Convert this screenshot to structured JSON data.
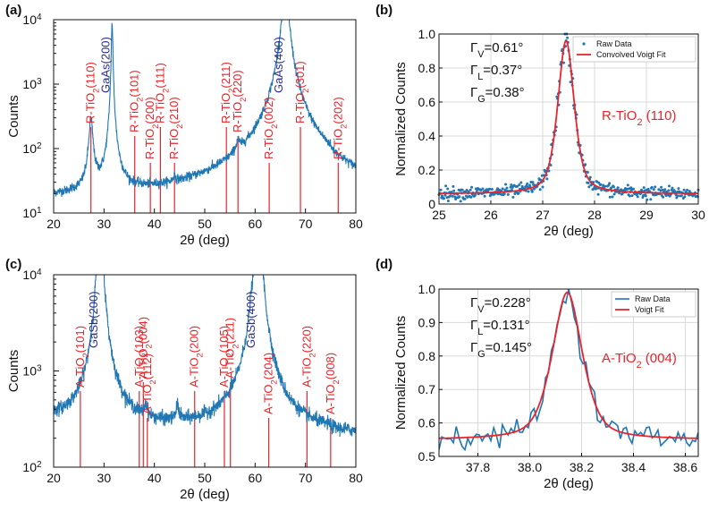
{
  "colors": {
    "raw": "#1f77b4",
    "fit": "#e8242c",
    "ref": "#e8242c",
    "substrate": "#2b2e8f",
    "grid": "#d9d9d9"
  },
  "chart_data": [
    {
      "panel": "(a)",
      "type": "line",
      "xlabel": "2θ (deg)",
      "ylabel": "Counts",
      "xlim": [
        20,
        80
      ],
      "yscale": "log",
      "ylim": [
        10,
        10000
      ],
      "xticks": [
        20,
        30,
        40,
        50,
        60,
        70,
        80
      ],
      "yticks": [
        {
          "v": 10,
          "label": "10",
          "sup": "1"
        },
        {
          "v": 100,
          "label": "10",
          "sup": "2"
        },
        {
          "v": 1000,
          "label": "10",
          "sup": "3"
        },
        {
          "v": 10000,
          "label": "10",
          "sup": "4"
        }
      ],
      "refs": [
        {
          "x": 27.4,
          "label": "R-TiO",
          "sub": "2",
          "hkl": "(110)",
          "color": "ref",
          "pos": "high"
        },
        {
          "x": 36.1,
          "label": "R-TiO",
          "sub": "2",
          "hkl": "(101)",
          "color": "ref",
          "pos": "mid"
        },
        {
          "x": 39.2,
          "label": "R-TiO",
          "sub": "2",
          "hkl": "(200)",
          "color": "ref",
          "pos": "low"
        },
        {
          "x": 41.2,
          "label": "R-TiO",
          "sub": "2",
          "hkl": "(111)",
          "color": "ref",
          "pos": "high"
        },
        {
          "x": 44.0,
          "label": "R-TiO",
          "sub": "2",
          "hkl": "(210)",
          "color": "ref",
          "pos": "low"
        },
        {
          "x": 54.3,
          "label": "R-TiO",
          "sub": "2",
          "hkl": "(211)",
          "color": "ref",
          "pos": "high"
        },
        {
          "x": 56.6,
          "label": "R-TiO",
          "sub": "2",
          "hkl": "(220)",
          "color": "ref",
          "pos": "mid"
        },
        {
          "x": 62.8,
          "label": "R-TiO",
          "sub": "2",
          "hkl": "(002)",
          "color": "ref",
          "pos": "low"
        },
        {
          "x": 69.0,
          "label": "R-TiO",
          "sub": "2",
          "hkl": "(301)",
          "color": "ref",
          "pos": "high"
        },
        {
          "x": 76.5,
          "label": "R-TiO",
          "sub": "2",
          "hkl": "(202)",
          "color": "ref",
          "pos": "low"
        }
      ],
      "substrate_labels": [
        {
          "x": 31.6,
          "text": "GaAs(200)"
        },
        {
          "x": 66.0,
          "text": "GaAs(400)"
        }
      ],
      "peaks": [
        {
          "x": 27.4,
          "h": 270,
          "w": 0.35
        },
        {
          "x": 31.6,
          "h": 9000,
          "w": 0.12
        },
        {
          "x": 66.0,
          "h": 60000,
          "w": 0.35
        },
        {
          "x": 56.6,
          "h": 40,
          "w": 0.4
        },
        {
          "x": 44.0,
          "h": 8,
          "w": 0.2
        },
        {
          "x": 62.8,
          "h": 12,
          "w": 0.3
        }
      ],
      "baseline": 16
    },
    {
      "panel": "(b)",
      "type": "scatter+line",
      "xlabel": "2θ (deg)",
      "ylabel": "Normalized Counts",
      "xlim": [
        25,
        30
      ],
      "ylim": [
        0,
        1.0
      ],
      "xticks": [
        25,
        26,
        27,
        28,
        29,
        30
      ],
      "yticks": [
        0,
        0.2,
        0.4,
        0.6,
        0.8,
        1.0
      ],
      "legend": [
        "Raw Data",
        "Convolved Voigt Fit"
      ],
      "annotations": [
        {
          "g": "Γ",
          "sub": "V",
          "val": "=0.61°"
        },
        {
          "g": "Γ",
          "sub": "L",
          "val": "=0.37°"
        },
        {
          "g": "Γ",
          "sub": "G",
          "val": "=0.38°"
        }
      ],
      "title_label": {
        "pre": "R-TiO",
        "sub": "2",
        "post": " (110)"
      },
      "fit": {
        "x0": 27.45,
        "amp": 0.9,
        "base": 0.06,
        "wl": 0.185,
        "wg": 0.19
      }
    },
    {
      "panel": "(c)",
      "type": "line",
      "xlabel": "2θ (deg)",
      "ylabel": "Counts",
      "xlim": [
        20,
        80
      ],
      "yscale": "log",
      "ylim": [
        100,
        10000
      ],
      "xticks": [
        20,
        30,
        40,
        50,
        60,
        70,
        80
      ],
      "yticks": [
        {
          "v": 100,
          "label": "10",
          "sup": "2"
        },
        {
          "v": 1000,
          "label": "10",
          "sup": "3"
        },
        {
          "v": 10000,
          "label": "10",
          "sup": "4"
        }
      ],
      "refs": [
        {
          "x": 25.3,
          "label": "A-TiO",
          "sub": "2",
          "hkl": "(101)",
          "color": "ref",
          "pos": "mid"
        },
        {
          "x": 37.0,
          "label": "A-TiO",
          "sub": "2",
          "hkl": "(103)",
          "color": "ref",
          "pos": "mid"
        },
        {
          "x": 37.8,
          "label": "A-TiO",
          "sub": "2",
          "hkl": "(004)",
          "color": "ref",
          "pos": "high"
        },
        {
          "x": 38.6,
          "label": "A-TiO",
          "sub": "2",
          "hkl": "(112)",
          "color": "ref",
          "pos": "low"
        },
        {
          "x": 48.0,
          "label": "A-TiO",
          "sub": "2",
          "hkl": "(200)",
          "color": "ref",
          "pos": "mid"
        },
        {
          "x": 53.9,
          "label": "A-TiO",
          "sub": "2",
          "hkl": "(105)",
          "color": "ref",
          "pos": "mid"
        },
        {
          "x": 55.1,
          "label": "A-TiO",
          "sub": "2",
          "hkl": "(211)",
          "color": "ref",
          "pos": "high"
        },
        {
          "x": 62.7,
          "label": "A-TiO",
          "sub": "2",
          "hkl": "(204)",
          "color": "ref",
          "pos": "low"
        },
        {
          "x": 70.3,
          "label": "A-TiO",
          "sub": "2",
          "hkl": "(220)",
          "color": "ref",
          "pos": "mid"
        },
        {
          "x": 75.0,
          "label": "A-TiO",
          "sub": "2",
          "hkl": "(008)",
          "color": "ref",
          "pos": "low"
        }
      ],
      "substrate_labels": [
        {
          "x": 29.2,
          "text": "GaSb(200)"
        },
        {
          "x": 60.5,
          "text": "GaSb(400)"
        }
      ],
      "peaks": [
        {
          "x": 29.2,
          "h": 60000,
          "w": 0.35
        },
        {
          "x": 60.6,
          "h": 60000,
          "w": 0.45
        },
        {
          "x": 38.3,
          "h": 120,
          "w": 0.3
        },
        {
          "x": 44.6,
          "h": 150,
          "w": 0.25
        },
        {
          "x": 59.2,
          "h": 700,
          "w": 0.25
        }
      ],
      "baseline": 240
    },
    {
      "panel": "(d)",
      "type": "line",
      "xlabel": "2θ (deg)",
      "ylabel": "Normalized Counts",
      "xlim": [
        37.65,
        38.65
      ],
      "ylim": [
        0.5,
        1.0
      ],
      "xticks": [
        37.8,
        38.0,
        38.2,
        38.4,
        38.6
      ],
      "yticks": [
        0.5,
        0.6,
        0.7,
        0.8,
        0.9,
        1.0
      ],
      "legend": [
        "Raw Data",
        "Voigt Fit"
      ],
      "annotations": [
        {
          "g": "Γ",
          "sub": "V",
          "val": "=0.228°"
        },
        {
          "g": "Γ",
          "sub": "L",
          "val": "=0.131°"
        },
        {
          "g": "Γ",
          "sub": "G",
          "val": "=0.145°"
        }
      ],
      "title_label": {
        "pre": "A-TiO",
        "sub": "2",
        "post": " (004)"
      },
      "fit": {
        "x0": 38.145,
        "amp": 0.44,
        "base": 0.55,
        "wl": 0.065,
        "wg": 0.072
      }
    }
  ]
}
